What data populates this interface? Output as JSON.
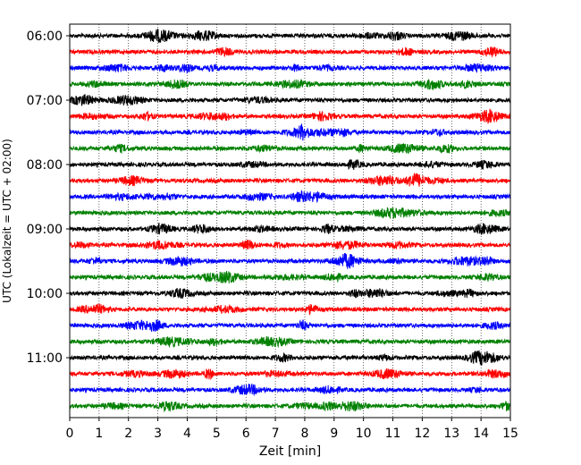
{
  "chart_data": {
    "type": "line",
    "title": "",
    "xlabel": "Zeit  [min]",
    "ylabel": "UTC (Lokalzeit = UTC + 02:00)",
    "xlim": [
      0,
      15
    ],
    "xticks": [
      0,
      1,
      2,
      3,
      4,
      5,
      6,
      7,
      8,
      9,
      10,
      11,
      12,
      13,
      14,
      15
    ],
    "yticks": [
      "06:00",
      "07:00",
      "08:00",
      "09:00",
      "10:00",
      "11:00"
    ],
    "grid": "vertical dotted",
    "trace_start_times": [
      "06:00",
      "06:15",
      "06:30",
      "06:45",
      "07:00",
      "07:15",
      "07:30",
      "07:45",
      "08:00",
      "08:15",
      "08:30",
      "08:45",
      "09:00",
      "09:15",
      "09:30",
      "09:45",
      "10:00",
      "10:15",
      "10:30",
      "10:45",
      "11:00",
      "11:15",
      "11:30",
      "11:45"
    ],
    "colors": [
      "#000000",
      "#ff0000",
      "#0000ff",
      "#008000"
    ]
  }
}
